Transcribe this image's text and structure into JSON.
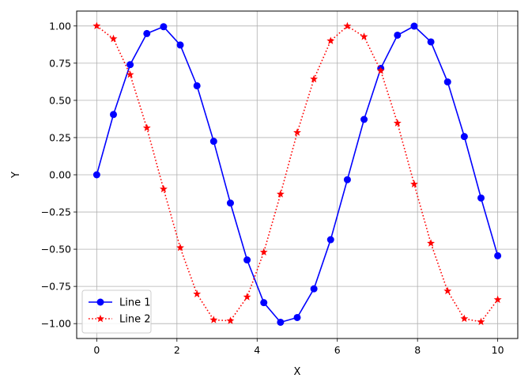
{
  "chart_data": {
    "type": "line",
    "title": "",
    "xlabel": "X",
    "ylabel": "Y",
    "xlim": [
      -0.5,
      10.5
    ],
    "ylim": [
      -1.1,
      1.1
    ],
    "xticks": [
      0,
      2,
      4,
      6,
      8,
      10
    ],
    "xtick_labels": [
      "0",
      "2",
      "4",
      "6",
      "8",
      "10"
    ],
    "yticks": [
      1.0,
      0.75,
      0.5,
      0.25,
      0.0,
      -0.25,
      -0.5,
      -0.75,
      -1.0
    ],
    "ytick_labels": [
      "1.00",
      "0.75",
      "0.50",
      "0.25",
      "0.00",
      "−0.25",
      "−0.50",
      "−0.75",
      "−1.00"
    ],
    "grid": true,
    "legend_position": "lower-left",
    "x": [
      0.0,
      0.4167,
      0.8333,
      1.25,
      1.6667,
      2.0833,
      2.5,
      2.9167,
      3.3333,
      3.75,
      4.1667,
      4.5833,
      5.0,
      5.4167,
      5.8333,
      6.25,
      6.6667,
      7.0833,
      7.5,
      7.9167,
      8.3333,
      8.75,
      9.1667,
      9.5833,
      10.0
    ],
    "series": [
      {
        "name": "Line 1",
        "color": "#0000ff",
        "line_style": "solid",
        "marker": "circle",
        "values": [
          0.0,
          0.405,
          0.74,
          0.949,
          0.995,
          0.872,
          0.598,
          0.225,
          -0.19,
          -0.572,
          -0.859,
          -0.991,
          -0.959,
          -0.766,
          -0.436,
          -0.033,
          0.372,
          0.715,
          0.938,
          0.999,
          0.893,
          0.624,
          0.257,
          -0.156,
          -0.544
        ]
      },
      {
        "name": "Line 2",
        "color": "#ff0000",
        "line_style": "dotted",
        "marker": "star",
        "values": [
          1.0,
          0.914,
          0.673,
          0.315,
          -0.096,
          -0.49,
          -0.801,
          -0.975,
          -0.981,
          -0.821,
          -0.52,
          -0.13,
          0.284,
          0.643,
          0.9,
          0.999,
          0.928,
          0.699,
          0.347,
          -0.063,
          -0.46,
          -0.781,
          -0.967,
          -0.988,
          -0.839
        ]
      }
    ]
  }
}
